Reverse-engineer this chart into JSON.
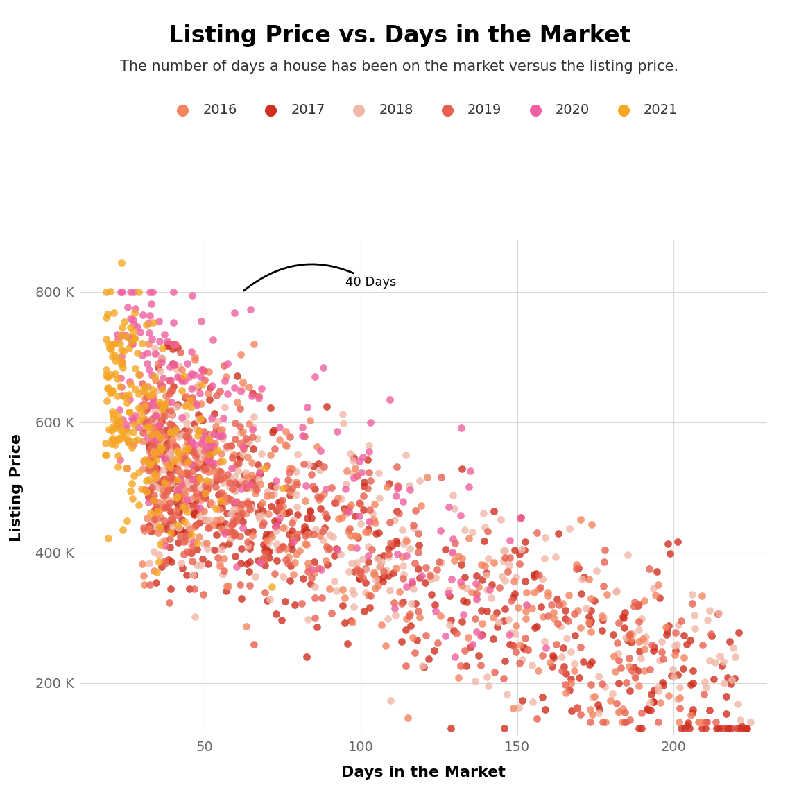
{
  "title": "Listing Price vs. Days in the Market",
  "subtitle": "The number of days a house has been on the market versus the listing price.",
  "xlabel": "Days in the Market",
  "ylabel": "Listing Price",
  "title_fontsize": 24,
  "subtitle_fontsize": 15,
  "label_fontsize": 16,
  "tick_fontsize": 14,
  "legend_fontsize": 14,
  "background_color": "#ffffff",
  "grid_color": "#d0d0d0",
  "years": [
    "2016",
    "2017",
    "2018",
    "2019",
    "2020",
    "2021"
  ],
  "year_colors": {
    "2016": "#F4845F",
    "2017": "#D03020",
    "2018": "#F0B8A8",
    "2019": "#E86050",
    "2020": "#F060A0",
    "2021": "#F5A623"
  },
  "annotation_text": "40 Days",
  "xlim": [
    10,
    230
  ],
  "ylim": [
    120000,
    880000
  ],
  "xticks": [
    50,
    100,
    150,
    200
  ],
  "yticks": [
    200000,
    400000,
    600000,
    800000
  ],
  "ytick_labels": [
    "200 K",
    "400 K",
    "600 K",
    "800 K"
  ],
  "marker_size": 60,
  "alpha": 0.8
}
